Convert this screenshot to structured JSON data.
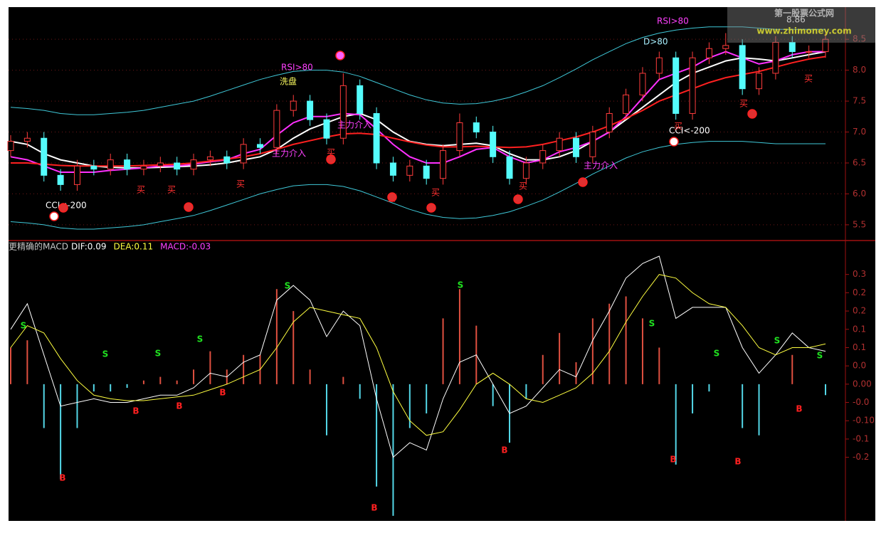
{
  "chart_data": [
    {
      "type": "candlestick",
      "ylim": [
        5.28,
        9.02
      ],
      "yticks": [
        5.5,
        {
          "value": 6,
          "label": "6.0"
        },
        6.5,
        {
          "value": 7,
          "label": "7.0"
        },
        7.5,
        {
          "value": 8,
          "label": "8.0"
        },
        8.5
      ],
      "grid": true,
      "up_color": "#ff3c3c",
      "down_color": "#54fcfc",
      "open": [
        6.7,
        6.85,
        6.9,
        6.3,
        6.15,
        6.45,
        6.4,
        6.55,
        6.4,
        6.45,
        6.5,
        6.4,
        6.55,
        6.6,
        6.5,
        6.8,
        6.75,
        7.35,
        7.5,
        7.2,
        6.9,
        7.75,
        7.3,
        6.5,
        6.3,
        6.45,
        6.25,
        6.7,
        7.15,
        7.0,
        6.6,
        6.25,
        6.5,
        6.7,
        6.9,
        6.6,
        7.0,
        7.3,
        7.6,
        7.95,
        8.2,
        7.3,
        8.2,
        8.35,
        8.4,
        7.7,
        7.95,
        8.45,
        8.3,
        8.3
      ],
      "high": [
        6.95,
        7.0,
        7.0,
        6.4,
        6.55,
        6.55,
        6.65,
        6.65,
        6.55,
        6.6,
        6.6,
        6.65,
        6.7,
        6.7,
        6.9,
        6.9,
        7.45,
        7.6,
        7.6,
        7.3,
        7.95,
        7.85,
        7.4,
        6.6,
        6.55,
        6.55,
        6.8,
        7.3,
        7.25,
        7.1,
        6.7,
        6.6,
        6.8,
        7.0,
        7.0,
        7.1,
        7.4,
        7.7,
        8.05,
        8.3,
        8.3,
        8.3,
        8.45,
        8.6,
        8.5,
        8.05,
        8.55,
        8.55,
        8.4,
        8.6
      ],
      "low": [
        6.6,
        6.75,
        6.2,
        6.05,
        6.05,
        6.3,
        6.3,
        6.3,
        6.3,
        6.35,
        6.3,
        6.3,
        6.45,
        6.4,
        6.4,
        6.65,
        6.65,
        7.25,
        7.1,
        6.8,
        6.8,
        7.2,
        6.4,
        6.2,
        6.2,
        6.15,
        6.15,
        6.6,
        6.9,
        6.5,
        6.15,
        6.15,
        6.4,
        6.6,
        6.5,
        6.5,
        6.9,
        7.2,
        7.5,
        7.85,
        7.2,
        7.2,
        8.1,
        8.25,
        7.6,
        7.6,
        7.85,
        8.2,
        8.2,
        8.2
      ],
      "close": [
        6.85,
        6.9,
        6.3,
        6.15,
        6.45,
        6.4,
        6.55,
        6.4,
        6.45,
        6.5,
        6.4,
        6.55,
        6.6,
        6.5,
        6.8,
        6.75,
        7.35,
        7.5,
        7.2,
        6.9,
        7.75,
        7.3,
        6.5,
        6.3,
        6.45,
        6.25,
        6.7,
        7.15,
        7.0,
        6.6,
        6.25,
        6.5,
        6.7,
        6.9,
        6.6,
        7.0,
        7.3,
        7.6,
        7.95,
        8.2,
        7.3,
        8.2,
        8.35,
        8.4,
        7.7,
        7.95,
        8.45,
        8.3,
        8.3,
        8.5
      ],
      "lines": [
        {
          "color": "#3fc8d8",
          "values": [
            7.4,
            7.38,
            7.35,
            7.3,
            7.28,
            7.28,
            7.3,
            7.32,
            7.35,
            7.4,
            7.45,
            7.5,
            7.58,
            7.67,
            7.76,
            7.85,
            7.92,
            7.98,
            8.0,
            8.0,
            7.97,
            7.9,
            7.8,
            7.7,
            7.6,
            7.52,
            7.47,
            7.45,
            7.46,
            7.5,
            7.56,
            7.65,
            7.75,
            7.88,
            8.02,
            8.17,
            8.3,
            8.43,
            8.53,
            8.6,
            8.65,
            8.68,
            8.7,
            8.7,
            8.7,
            8.68,
            8.66,
            8.66,
            8.66,
            8.66
          ]
        },
        {
          "color": "#3fc8d8",
          "values": [
            5.55,
            5.53,
            5.5,
            5.45,
            5.43,
            5.43,
            5.45,
            5.47,
            5.5,
            5.55,
            5.6,
            5.65,
            5.73,
            5.82,
            5.91,
            6.0,
            6.07,
            6.13,
            6.15,
            6.15,
            6.12,
            6.05,
            5.95,
            5.85,
            5.75,
            5.67,
            5.62,
            5.6,
            5.61,
            5.65,
            5.71,
            5.8,
            5.9,
            6.03,
            6.17,
            6.32,
            6.45,
            6.58,
            6.68,
            6.75,
            6.8,
            6.83,
            6.85,
            6.85,
            6.85,
            6.83,
            6.81,
            6.81,
            6.81,
            6.81
          ]
        },
        {
          "color": "#ffffff",
          "values": [
            6.85,
            6.8,
            6.65,
            6.55,
            6.5,
            6.45,
            6.43,
            6.42,
            6.42,
            6.43,
            6.44,
            6.45,
            6.47,
            6.5,
            6.55,
            6.6,
            6.72,
            6.9,
            7.05,
            7.15,
            7.25,
            7.3,
            7.2,
            7.0,
            6.85,
            6.8,
            6.78,
            6.8,
            6.82,
            6.78,
            6.65,
            6.55,
            6.55,
            6.6,
            6.7,
            6.85,
            7.0,
            7.2,
            7.4,
            7.6,
            7.8,
            7.95,
            8.05,
            8.15,
            8.2,
            8.18,
            8.15,
            8.2,
            8.25,
            8.3
          ]
        },
        {
          "color": "#ff30ff",
          "values": [
            6.6,
            6.55,
            6.45,
            6.35,
            6.35,
            6.35,
            6.38,
            6.4,
            6.42,
            6.45,
            6.45,
            6.48,
            6.52,
            6.55,
            6.65,
            6.72,
            6.95,
            7.15,
            7.25,
            7.25,
            7.3,
            7.28,
            7.05,
            6.8,
            6.6,
            6.5,
            6.5,
            6.6,
            6.72,
            6.75,
            6.6,
            6.5,
            6.55,
            6.68,
            6.75,
            6.85,
            7.0,
            7.25,
            7.55,
            7.85,
            7.95,
            8.05,
            8.2,
            8.3,
            8.2,
            8.1,
            8.15,
            8.25,
            8.3,
            8.3
          ]
        },
        {
          "color": "#ff2020",
          "values": [
            6.5,
            6.5,
            6.48,
            6.46,
            6.45,
            6.45,
            6.45,
            6.45,
            6.46,
            6.47,
            6.48,
            6.5,
            6.53,
            6.56,
            6.6,
            6.65,
            6.72,
            6.8,
            6.86,
            6.92,
            6.97,
            6.98,
            6.96,
            6.9,
            6.84,
            6.79,
            6.76,
            6.76,
            6.77,
            6.76,
            6.75,
            6.76,
            6.8,
            6.86,
            6.92,
            7.0,
            7.1,
            7.22,
            7.35,
            7.5,
            7.6,
            7.7,
            7.8,
            7.88,
            7.93,
            7.98,
            8.05,
            8.12,
            8.18,
            8.22
          ]
        }
      ],
      "annotations": [
        "RSI>80",
        "洗盘",
        "主力介入",
        "主力介入",
        "主力介入",
        "RSI>80",
        "D>80",
        "CCI<-200",
        "CCI<-200",
        "8.86",
        "买",
        "买",
        "买",
        "买",
        "买",
        "买",
        "买",
        "买",
        "买",
        "买"
      ],
      "watermark": [
        "第一股票公式网",
        "www.zhimoney.com"
      ]
    },
    {
      "type": "macd",
      "title": "更精确的MACD",
      "ylim": [
        -0.37,
        0.385
      ],
      "yticks": [
        {
          "value": 0.3,
          "label": "0.3"
        },
        {
          "value": 0.25,
          "label": "0.2"
        },
        {
          "value": 0.2,
          "label": "0.2"
        },
        {
          "value": 0.15,
          "label": "0.1"
        },
        {
          "value": 0.1,
          "label": "0.1"
        },
        {
          "value": 0.05,
          "label": "0.0"
        },
        {
          "value": 0,
          "label": "0.00"
        },
        {
          "value": -0.05,
          "label": "-0.0"
        },
        {
          "value": -0.1,
          "label": "-0.10"
        },
        {
          "value": -0.15,
          "label": "-0.1"
        },
        {
          "value": -0.2,
          "label": "-0.2"
        }
      ],
      "series": [
        {
          "name": "DIF:0.09",
          "color": "#ffffff",
          "values": [
            0.15,
            0.22,
            0.08,
            -0.06,
            -0.05,
            -0.04,
            -0.05,
            -0.05,
            -0.04,
            -0.03,
            -0.03,
            -0.01,
            0.03,
            0.02,
            0.06,
            0.08,
            0.23,
            0.27,
            0.23,
            0.13,
            0.2,
            0.16,
            -0.04,
            -0.2,
            -0.16,
            -0.18,
            -0.04,
            0.06,
            0.08,
            0,
            -0.08,
            -0.06,
            -0.01,
            0.04,
            0.02,
            0.12,
            0.2,
            0.29,
            0.33,
            0.35,
            0.18,
            0.21,
            0.21,
            0.21,
            0.1,
            0.03,
            0.08,
            0.14,
            0.1,
            0.09
          ]
        },
        {
          "name": "DEA:0.11",
          "color": "#ffff40",
          "values": [
            0.1,
            0.16,
            0.14,
            0.07,
            0.01,
            -0.03,
            -0.04,
            -0.045,
            -0.045,
            -0.04,
            -0.035,
            -0.03,
            -0.015,
            0,
            0.02,
            0.04,
            0.1,
            0.17,
            0.21,
            0.2,
            0.19,
            0.18,
            0.1,
            -0.02,
            -0.1,
            -0.14,
            -0.13,
            -0.07,
            0,
            0.03,
            0,
            -0.04,
            -0.05,
            -0.03,
            -0.01,
            0.03,
            0.09,
            0.17,
            0.24,
            0.3,
            0.29,
            0.25,
            0.22,
            0.21,
            0.16,
            0.1,
            0.08,
            0.1,
            0.1,
            0.11
          ]
        },
        {
          "name": "MACD:-0.03",
          "color": "#ff40ff",
          "up_color": "#e05040",
          "down_color": "#54d8e8",
          "values": [
            0.1,
            0.12,
            -0.12,
            -0.26,
            -0.12,
            -0.02,
            -0.02,
            -0.01,
            0.01,
            0.02,
            0.01,
            0.04,
            0.09,
            0.04,
            0.08,
            0.08,
            0.26,
            0.2,
            0.04,
            -0.14,
            0.02,
            -0.04,
            -0.28,
            -0.36,
            -0.12,
            -0.08,
            0.18,
            0.26,
            0.16,
            -0.06,
            -0.16,
            -0.04,
            0.08,
            0.14,
            0.06,
            0.18,
            0.22,
            0.24,
            0.18,
            0.1,
            -0.22,
            -0.08,
            -0.02,
            0,
            -0.12,
            -0.14,
            0,
            0.08,
            0,
            -0.03
          ]
        }
      ],
      "signals": [
        "S",
        "S",
        "S",
        "S",
        "S",
        "S",
        "S",
        "S",
        "S",
        "S",
        "B",
        "B",
        "B",
        "B",
        "B",
        "B",
        "B",
        "B",
        "B"
      ]
    }
  ]
}
